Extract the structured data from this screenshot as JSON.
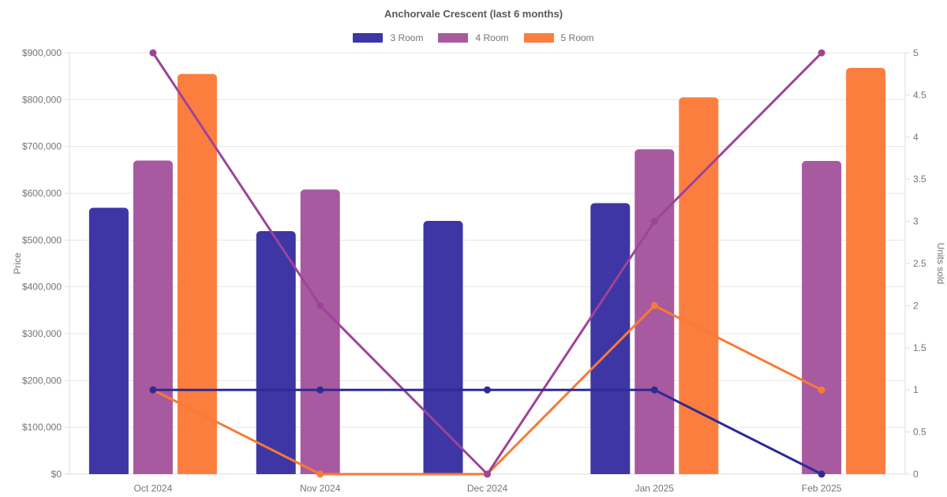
{
  "chart": {
    "title": "Anchorvale Crescent (last 6 months)",
    "legend": [
      {
        "label": "3 Room",
        "color": "#3e36a5"
      },
      {
        "label": "4 Room",
        "color": "#a75aa0"
      },
      {
        "label": "5 Room",
        "color": "#fb7e3f"
      }
    ]
  },
  "chart_data": {
    "type": "combo-bar-line",
    "title": "Anchorvale Crescent (last 6 months)",
    "categories": [
      "Oct 2024",
      "Nov 2024",
      "Dec 2024",
      "Jan 2025",
      "Feb 2025"
    ],
    "bar_series": [
      {
        "name": "3 Room",
        "axis": "left",
        "color": "#3e36a5",
        "values": [
          569000,
          519000,
          541000,
          579000,
          null
        ]
      },
      {
        "name": "4 Room",
        "axis": "left",
        "color": "#a75aa0",
        "values": [
          670000,
          608000,
          null,
          694000,
          669000
        ]
      },
      {
        "name": "5 Room",
        "axis": "left",
        "color": "#fb7e3f",
        "values": [
          855000,
          null,
          null,
          805000,
          868000
        ]
      }
    ],
    "line_series": [
      {
        "name": "5 Room",
        "axis": "right",
        "color": "#f87a35",
        "values": [
          1,
          0,
          0,
          2,
          1
        ]
      },
      {
        "name": "4 Room",
        "axis": "right",
        "color": "#9d4499",
        "values": [
          5,
          2,
          0,
          3,
          5
        ]
      },
      {
        "name": "3 Room",
        "axis": "right",
        "color": "#2e2b94",
        "values": [
          1,
          1,
          1,
          1,
          0
        ]
      }
    ],
    "y_left": {
      "label": "Price",
      "min": 0,
      "max": 900000,
      "step": 100000,
      "format": "currency"
    },
    "y_right": {
      "label": "Units sold",
      "min": 0,
      "max": 5,
      "step": 0.5
    },
    "grid": "horizontal-only",
    "legend_position": "top",
    "colors": {
      "grid": "#e7e7e7",
      "axis": "#dedede",
      "tick_text": "#757575",
      "title_text": "#595959"
    }
  }
}
